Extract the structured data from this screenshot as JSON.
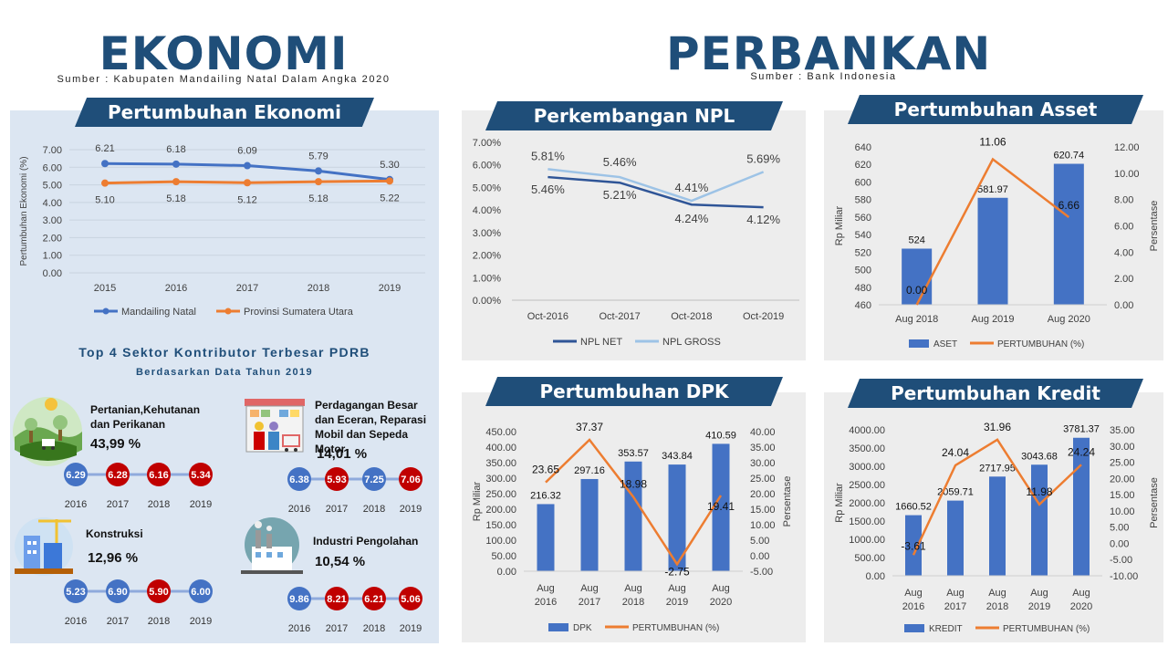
{
  "header": {
    "left_title": "EKONOMI",
    "left_source": "Sumber : Kabupaten Mandailing Natal Dalam Angka 2020",
    "right_title": "PERBANKAN",
    "right_source": "Sumber : Bank Indonesia"
  },
  "banners": {
    "growth": "Pertumbuhan Ekonomi",
    "npl": "Perkembangan NPL",
    "asset": "Pertumbuhan Asset",
    "dpk": "Pertumbuhan DPK",
    "kredit": "Pertumbuhan Kredit"
  },
  "top4": {
    "title": "Top 4 Sektor Kontributor Terbesar PDRB",
    "subtitle": "Berdasarkan Data Tahun 2019",
    "sectors": [
      {
        "name": "Pertanian,Kehutanan dan Perikanan",
        "pct": "43,99 %",
        "years": [
          "2016",
          "2017",
          "2018",
          "2019"
        ],
        "values": [
          "6.29",
          "6.28",
          "6.16",
          "5.34"
        ],
        "colors": [
          "#4472c4",
          "#c00000",
          "#c00000",
          "#c00000"
        ]
      },
      {
        "name": "Perdagangan Besar dan Eceran, Reparasi Mobil dan Sepeda Motor",
        "pct": "14,01 %",
        "years": [
          "2016",
          "2017",
          "2018",
          "2019"
        ],
        "values": [
          "6.38",
          "5.93",
          "7.25",
          "7.06"
        ],
        "colors": [
          "#4472c4",
          "#c00000",
          "#4472c4",
          "#c00000"
        ]
      },
      {
        "name": "Konstruksi",
        "pct": "12,96 %",
        "years": [
          "2016",
          "2017",
          "2018",
          "2019"
        ],
        "values": [
          "5.23",
          "6.90",
          "5.90",
          "6.00"
        ],
        "colors": [
          "#4472c4",
          "#4472c4",
          "#c00000",
          "#4472c4"
        ]
      },
      {
        "name": "Industri Pengolahan",
        "pct": "10,54 %",
        "years": [
          "2016",
          "2017",
          "2018",
          "2019"
        ],
        "values": [
          "9.86",
          "8.21",
          "6.21",
          "5.06"
        ],
        "colors": [
          "#4472c4",
          "#c00000",
          "#c00000",
          "#c00000"
        ]
      }
    ]
  },
  "colors": {
    "navy": "#1f4e79",
    "blue": "#4472c4",
    "orange": "#ed7d31",
    "lightblue": "#9dc3e6",
    "red": "#c00000"
  },
  "chart_data": [
    {
      "id": "growth",
      "type": "line",
      "title": "Pertumbuhan Ekonomi",
      "ylabel": "Pertumbuhan Ekonomi (%)",
      "categories": [
        "2015",
        "2016",
        "2017",
        "2018",
        "2019"
      ],
      "y_ticks": [
        "0.00",
        "1.00",
        "2.00",
        "3.00",
        "4.00",
        "5.00",
        "6.00",
        "7.00"
      ],
      "ylim": [
        0,
        7
      ],
      "series": [
        {
          "name": "Mandailing Natal",
          "values": [
            6.21,
            6.18,
            6.09,
            5.79,
            5.3
          ],
          "labels": [
            "6.21",
            "6.18",
            "6.09",
            "5.79",
            "5.30"
          ],
          "color": "#4472c4"
        },
        {
          "name": "Provinsi Sumatera Utara",
          "values": [
            5.1,
            5.18,
            5.12,
            5.18,
            5.22
          ],
          "labels": [
            "5.10",
            "5.18",
            "5.12",
            "5.18",
            "5.22"
          ],
          "color": "#ed7d31"
        }
      ]
    },
    {
      "id": "npl",
      "type": "line",
      "title": "Perkembangan NPL",
      "categories": [
        "Oct-2016",
        "Oct-2017",
        "Oct-2018",
        "Oct-2019"
      ],
      "y_ticks": [
        "0.00%",
        "1.00%",
        "2.00%",
        "3.00%",
        "4.00%",
        "5.00%",
        "6.00%",
        "7.00%"
      ],
      "ylim": [
        0,
        7
      ],
      "series": [
        {
          "name": "NPL NET",
          "values": [
            5.46,
            5.21,
            4.24,
            4.12
          ],
          "labels": [
            "5.46%",
            "5.21%",
            "4.24%",
            "4.12%"
          ],
          "color": "#2f5597"
        },
        {
          "name": "NPL GROSS",
          "values": [
            5.81,
            5.46,
            4.41,
            5.69
          ],
          "labels": [
            "5.81%",
            "5.46%",
            "4.41%",
            "5.69%"
          ],
          "color": "#9dc3e6"
        }
      ]
    },
    {
      "id": "asset",
      "type": "bar+line",
      "title": "Pertumbuhan Asset",
      "ylabel": "Rp Miliar",
      "y2label": "Persentase",
      "categories": [
        "Aug 2018",
        "Aug 2019",
        "Aug 2020"
      ],
      "y_ticks": [
        "460",
        "480",
        "500",
        "520",
        "540",
        "560",
        "580",
        "600",
        "620",
        "640"
      ],
      "ylim": [
        460,
        640
      ],
      "y2_ticks": [
        "0.00",
        "2.00",
        "4.00",
        "6.00",
        "8.00",
        "10.00",
        "12.00"
      ],
      "y2lim": [
        0,
        12
      ],
      "bars": {
        "name": "ASET",
        "values": [
          524,
          581.97,
          620.74
        ],
        "labels": [
          "524",
          "581.97",
          "620.74"
        ],
        "color": "#4472c4"
      },
      "line": {
        "name": "PERTUMBUHAN (%)",
        "values": [
          0.0,
          11.06,
          6.66
        ],
        "labels": [
          "0.00",
          "11.06",
          "6.66"
        ],
        "color": "#ed7d31"
      }
    },
    {
      "id": "dpk",
      "type": "bar+line",
      "title": "Pertumbuhan DPK",
      "ylabel": "Rp Miliar",
      "y2label": "Persentase",
      "categories": [
        "Aug 2016",
        "Aug 2017",
        "Aug 2018",
        "Aug 2019",
        "Aug 2020"
      ],
      "y_ticks": [
        "0.00",
        "50.00",
        "100.00",
        "150.00",
        "200.00",
        "250.00",
        "300.00",
        "350.00",
        "400.00",
        "450.00"
      ],
      "ylim": [
        0,
        450
      ],
      "y2_ticks": [
        "-5.00",
        "0.00",
        "5.00",
        "10.00",
        "15.00",
        "20.00",
        "25.00",
        "30.00",
        "35.00",
        "40.00"
      ],
      "y2lim": [
        -5,
        40
      ],
      "bars": {
        "name": "DPK",
        "values": [
          216.32,
          297.16,
          353.57,
          343.84,
          410.59
        ],
        "labels": [
          "216.32",
          "297.16",
          "353.57",
          "343.84",
          "410.59"
        ],
        "color": "#4472c4"
      },
      "line": {
        "name": "PERTUMBUHAN (%)",
        "values": [
          23.65,
          37.37,
          18.98,
          -2.75,
          19.41
        ],
        "labels": [
          "23.65",
          "37.37",
          "18.98",
          "-2.75",
          "19.41"
        ],
        "color": "#ed7d31"
      }
    },
    {
      "id": "kredit",
      "type": "bar+line",
      "title": "Pertumbuhan Kredit",
      "ylabel": "Rp Miliar",
      "y2label": "Persentase",
      "categories": [
        "Aug 2016",
        "Aug 2017",
        "Aug 2018",
        "Aug 2019",
        "Aug 2020"
      ],
      "y_ticks": [
        "0.00",
        "500.00",
        "1000.00",
        "1500.00",
        "2000.00",
        "2500.00",
        "3000.00",
        "3500.00",
        "4000.00"
      ],
      "ylim": [
        0,
        4000
      ],
      "y2_ticks": [
        "-10.00",
        "-5.00",
        "0.00",
        "5.00",
        "10.00",
        "15.00",
        "20.00",
        "25.00",
        "30.00",
        "35.00"
      ],
      "y2lim": [
        -10,
        35
      ],
      "bars": {
        "name": "KREDIT",
        "values": [
          1660.52,
          2059.71,
          2717.95,
          3043.68,
          3781.37
        ],
        "labels": [
          "1660.52",
          "2059.71",
          "2717.95",
          "3043.68",
          "3781.37"
        ],
        "color": "#4472c4"
      },
      "line": {
        "name": "PERTUMBUHAN (%)",
        "values": [
          -3.61,
          24.04,
          31.96,
          11.98,
          24.24
        ],
        "labels": [
          "-3.61",
          "24.04",
          "31.96",
          "11.98",
          "24.24"
        ],
        "color": "#ed7d31"
      }
    }
  ]
}
